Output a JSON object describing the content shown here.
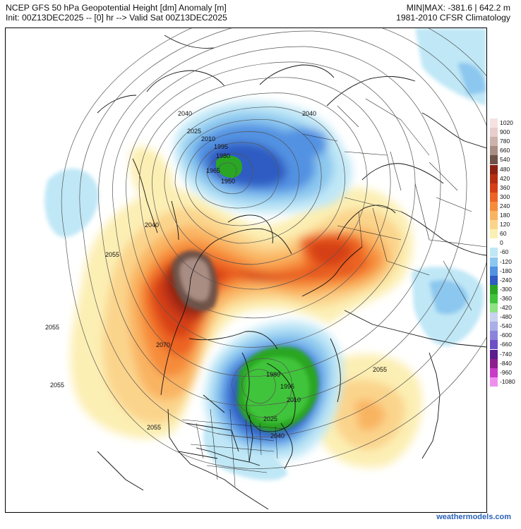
{
  "header": {
    "title": "NCEP GFS 50 hPa Geopotential Height [dm] Anomaly [m]",
    "init": "Init: 00Z13DEC2025 -- [0] hr --> Valid Sat 00Z13DEC2025",
    "minmax": "MIN|MAX: -381.6 | 642.2 m",
    "climatology": "1981-2010 CFSR Climatology"
  },
  "legend": {
    "entries": [
      {
        "label": "1020",
        "color": "#f6e2e2"
      },
      {
        "label": "900",
        "color": "#e9cccc"
      },
      {
        "label": "780",
        "color": "#cdb1ab"
      },
      {
        "label": "660",
        "color": "#a98c82"
      },
      {
        "label": "540",
        "color": "#6f5248"
      },
      {
        "label": "480",
        "color": "#8b2211"
      },
      {
        "label": "420",
        "color": "#b52e12"
      },
      {
        "label": "360",
        "color": "#d63f15"
      },
      {
        "label": "300",
        "color": "#ec6424"
      },
      {
        "label": "240",
        "color": "#f68c3a"
      },
      {
        "label": "180",
        "color": "#f9b462"
      },
      {
        "label": "120",
        "color": "#fbd48c"
      },
      {
        "label": "60",
        "color": "#fcefb4"
      },
      {
        "label": "0",
        "color": "#ffffff"
      },
      {
        "label": "-60",
        "color": "#bfe7f6"
      },
      {
        "label": "-120",
        "color": "#8cc7ef"
      },
      {
        "label": "-180",
        "color": "#5292e2"
      },
      {
        "label": "-240",
        "color": "#2f5bc2"
      },
      {
        "label": "-300",
        "color": "#2aa624"
      },
      {
        "label": "-360",
        "color": "#3fc43a"
      },
      {
        "label": "-420",
        "color": "#8ee383"
      },
      {
        "label": "-480",
        "color": "#c9d2f0"
      },
      {
        "label": "-540",
        "color": "#a9aee6"
      },
      {
        "label": "-600",
        "color": "#8c84dc"
      },
      {
        "label": "-660",
        "color": "#6c4fc6"
      },
      {
        "label": "-740",
        "color": "#5a1e8e"
      },
      {
        "label": "-840",
        "color": "#8e1e8e"
      },
      {
        "label": "-960",
        "color": "#c93ac9"
      },
      {
        "label": "-1080",
        "color": "#f08ef0"
      }
    ]
  },
  "map": {
    "contour_labels": [
      "2040",
      "2025",
      "2010",
      "1995",
      "1980",
      "1965",
      "1950",
      "2040",
      "2040",
      "2055",
      "2055",
      "2070",
      "2055",
      "2055",
      "2055",
      "1980",
      "1995",
      "2010",
      "2025",
      "2040"
    ]
  },
  "credit": "weathermodels.com"
}
